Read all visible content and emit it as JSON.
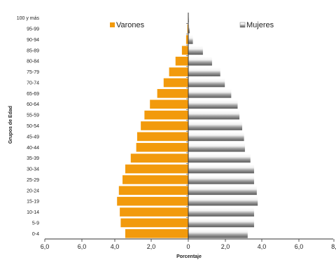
{
  "chart_data": {
    "type": "bar",
    "orientation": "horizontal",
    "layout": "population-pyramid",
    "ylabel": "Grupos de Edad",
    "xlabel": "Porcentaje",
    "categories": [
      "0-4",
      "5-9",
      "10-14",
      "15-19",
      "20-24",
      "25-29",
      "30-34",
      "35-39",
      "40-44",
      "45-49",
      "50-54",
      "55-59",
      "60-64",
      "65-69",
      "70-74",
      "75-79",
      "80-84",
      "85-89",
      "90-94",
      "95-99",
      "100 y más"
    ],
    "x_ticks": [
      "6,0",
      "6,0",
      "4,0",
      "2,0",
      "0",
      "2,0",
      "4,0",
      "6,0",
      "8,"
    ],
    "xlim": [
      -8,
      8
    ],
    "legend_position": "top",
    "series": [
      {
        "name": "Varones",
        "side": "left",
        "color": "#f29a0c",
        "values": [
          3.45,
          3.7,
          3.75,
          3.9,
          3.8,
          3.6,
          3.45,
          3.15,
          2.85,
          2.8,
          2.6,
          2.4,
          2.1,
          1.7,
          1.35,
          1.05,
          0.7,
          0.35,
          0.12,
          0.05,
          0.02
        ]
      },
      {
        "name": "Mujeres",
        "side": "right",
        "color": "#bdbdbd",
        "values": [
          3.25,
          3.6,
          3.6,
          3.8,
          3.75,
          3.6,
          3.6,
          3.4,
          3.1,
          3.05,
          2.95,
          2.8,
          2.7,
          2.35,
          2.0,
          1.75,
          1.3,
          0.8,
          0.25,
          0.08,
          0.03
        ]
      }
    ]
  }
}
